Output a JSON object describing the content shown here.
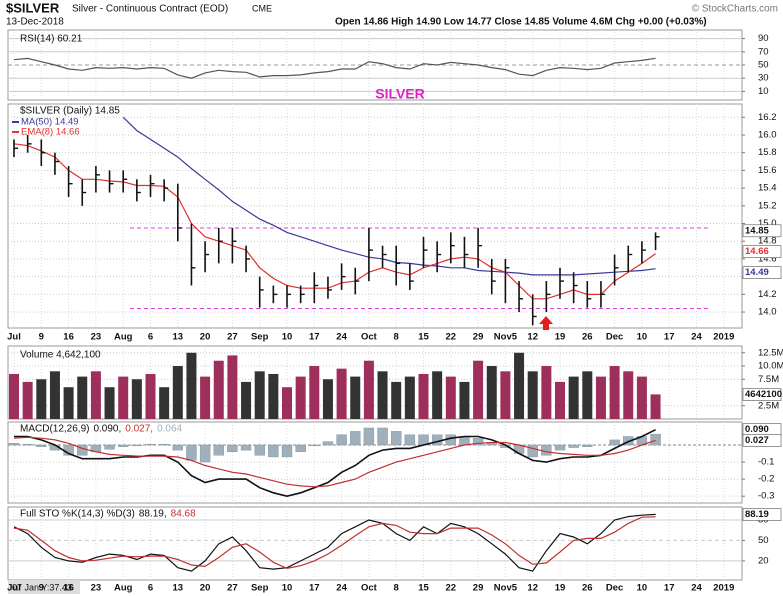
{
  "header": {
    "symbol": "$SILVER",
    "name": "Silver - Continuous Contract (EOD)",
    "exchange": "CME",
    "date": "13-Dec-2018",
    "quote": "Open 14.86 High 14.90 Low 14.77 Close 14.85 Volume 4.6M Chg +0.00 (+0.03%)",
    "credit": "© StockCharts.com",
    "footer": "07 Jan Y:37.43"
  },
  "x_ticks": [
    "Jul",
    "9",
    "16",
    "23",
    "Aug",
    "6",
    "13",
    "20",
    "27",
    "Sep",
    "10",
    "17",
    "24",
    "Oct",
    "8",
    "15",
    "22",
    "29",
    "Nov5",
    "12",
    "19",
    "26",
    "Dec",
    "10",
    "17",
    "24",
    "2019"
  ],
  "chart_data": [
    {
      "type": "line",
      "title": "RSI(14) 60.21",
      "annotation": "SILVER",
      "ylim": [
        0,
        100
      ],
      "yticks": [
        90,
        70,
        50,
        30,
        10
      ],
      "grid": true,
      "series": [
        {
          "color": "#555555",
          "values": [
            58,
            60,
            55,
            50,
            44,
            42,
            46,
            45,
            46,
            44,
            46,
            45,
            35,
            30,
            38,
            42,
            40,
            39,
            32,
            34,
            34,
            35,
            38,
            40,
            44,
            44,
            55,
            52,
            46,
            44,
            52,
            50,
            54,
            52,
            50,
            46,
            43,
            36,
            34,
            42,
            46,
            45,
            43,
            45,
            53,
            55,
            57,
            60.21
          ]
        }
      ]
    },
    {
      "type": "ohlc",
      "title": "$SILVER (Daily) 14.85",
      "color": "#111111",
      "ylim": [
        13.82,
        16.35
      ],
      "yticks": [
        {
          "value": 14,
          "label": "14.0"
        },
        {
          "value": 14.2,
          "label": "14.2"
        },
        {
          "value": 14.4,
          "label": "14.4"
        },
        {
          "value": 14.6,
          "label": "14.6"
        },
        {
          "value": 14.8,
          "label": "14.8"
        },
        {
          "value": 15,
          "label": "15.0"
        },
        {
          "value": 15.2,
          "label": "15.2"
        },
        {
          "value": 15.4,
          "label": "15.4"
        },
        {
          "value": 15.6,
          "label": "15.6"
        },
        {
          "value": 15.8,
          "label": "15.8"
        },
        {
          "value": 16,
          "label": "16.0"
        },
        {
          "value": 16.2,
          "label": "16.2"
        }
      ],
      "high": [
        15.95,
        16.0,
        15.95,
        15.8,
        15.65,
        15.5,
        15.65,
        15.6,
        15.6,
        15.5,
        15.55,
        15.5,
        15.45,
        15.0,
        14.8,
        14.95,
        14.95,
        14.75,
        14.4,
        14.3,
        14.3,
        14.3,
        14.45,
        14.4,
        14.55,
        14.5,
        14.95,
        14.75,
        14.75,
        14.55,
        14.85,
        14.8,
        14.9,
        14.85,
        14.95,
        14.6,
        14.6,
        14.35,
        14.2,
        14.35,
        14.5,
        14.45,
        14.35,
        14.35,
        14.65,
        14.75,
        14.8,
        14.9
      ],
      "low": [
        15.75,
        15.8,
        15.65,
        15.55,
        15.3,
        15.2,
        15.35,
        15.35,
        15.35,
        15.25,
        15.3,
        15.25,
        14.8,
        14.3,
        14.45,
        14.55,
        14.55,
        14.45,
        14.05,
        14.1,
        14.05,
        14.1,
        14.1,
        14.15,
        14.25,
        14.2,
        14.35,
        14.5,
        14.3,
        14.25,
        14.5,
        14.45,
        14.55,
        14.5,
        14.5,
        14.2,
        14.1,
        14.0,
        13.85,
        14.0,
        14.15,
        14.1,
        14.05,
        14.05,
        14.3,
        14.45,
        14.55,
        14.7
      ],
      "close": [
        15.85,
        15.9,
        15.8,
        15.7,
        15.45,
        15.35,
        15.55,
        15.45,
        15.5,
        15.35,
        15.45,
        15.4,
        14.95,
        14.5,
        14.65,
        14.8,
        14.8,
        14.6,
        14.25,
        14.2,
        14.2,
        14.2,
        14.3,
        14.25,
        14.4,
        14.35,
        14.7,
        14.65,
        14.55,
        14.35,
        14.7,
        14.65,
        14.75,
        14.65,
        14.75,
        14.35,
        14.5,
        14.15,
        13.95,
        14.2,
        14.35,
        14.3,
        14.15,
        14.2,
        14.5,
        14.65,
        14.7,
        14.85
      ],
      "last_label": "14.85",
      "hlines": [
        14.95,
        14.04
      ],
      "hline_color": "#e040e0",
      "series": [
        {
          "name": "MA(50) 14.49",
          "color": "#3a3a9a",
          "last_label": "14.49",
          "values": [
            null,
            null,
            null,
            null,
            null,
            null,
            null,
            null,
            16.2,
            16.05,
            15.95,
            15.85,
            15.75,
            15.62,
            15.5,
            15.38,
            15.25,
            15.15,
            15.05,
            14.98,
            14.9,
            14.85,
            14.8,
            14.75,
            14.7,
            14.66,
            14.62,
            14.6,
            14.56,
            14.55,
            14.53,
            14.52,
            14.5,
            14.5,
            14.47,
            14.46,
            14.45,
            14.44,
            14.42,
            14.42,
            14.42,
            14.42,
            14.43,
            14.44,
            14.45,
            14.46,
            14.47,
            14.49
          ]
        },
        {
          "name": "EMA(8) 14.66",
          "color": "#e03030",
          "last_label": "14.66",
          "values": [
            15.9,
            15.88,
            15.82,
            15.75,
            15.6,
            15.5,
            15.5,
            15.48,
            15.47,
            15.43,
            15.43,
            15.42,
            15.3,
            15.0,
            14.85,
            14.8,
            14.75,
            14.7,
            14.5,
            14.38,
            14.3,
            14.27,
            14.27,
            14.27,
            14.33,
            14.35,
            14.45,
            14.5,
            14.45,
            14.42,
            14.5,
            14.55,
            14.6,
            14.62,
            14.6,
            14.5,
            14.45,
            14.3,
            14.15,
            14.15,
            14.2,
            14.25,
            14.2,
            14.2,
            14.35,
            14.45,
            14.55,
            14.66
          ]
        }
      ]
    },
    {
      "type": "bar",
      "title": "Volume 4,642,100",
      "up_color": "#9e2f5c",
      "down_color": "#333333",
      "ylim": [
        0,
        13.4
      ],
      "yticks": [
        {
          "value": 12.5,
          "label": "12.5M"
        },
        {
          "value": 10,
          "label": "10.0M"
        },
        {
          "value": 7.5,
          "label": "7.5M"
        },
        {
          "value": 2.5,
          "label": "2.5M"
        }
      ],
      "values": [
        8.5,
        7,
        7.5,
        9,
        6,
        8,
        9,
        6,
        8,
        7.5,
        8.5,
        6,
        10,
        12.5,
        8,
        11,
        12,
        7,
        9,
        8.5,
        6,
        8,
        10,
        7.5,
        9.5,
        8,
        11,
        9,
        7,
        8,
        8.5,
        9,
        8,
        7,
        11,
        10,
        9,
        12.5,
        9,
        10,
        7,
        8,
        9,
        8,
        10,
        9,
        8,
        4.6421
      ],
      "last_label": "4642100"
    },
    {
      "type": "macd",
      "title": "MACD(12,26,9)",
      "ylim": [
        -0.34,
        0.135
      ],
      "yticks": [
        -0.1,
        -0.2,
        -0.3
      ],
      "zero_line": 0,
      "series": [
        {
          "name": "0.090,",
          "color": "#111111",
          "last_label": "0.090",
          "values": [
            0.05,
            0.05,
            0.03,
            0.0,
            -0.05,
            -0.08,
            -0.08,
            -0.08,
            -0.07,
            -0.07,
            -0.06,
            -0.06,
            -0.1,
            -0.18,
            -0.22,
            -0.2,
            -0.2,
            -0.2,
            -0.25,
            -0.28,
            -0.3,
            -0.28,
            -0.25,
            -0.22,
            -0.16,
            -0.12,
            -0.06,
            -0.03,
            -0.02,
            -0.02,
            0.0,
            0.02,
            0.04,
            0.05,
            0.05,
            0.03,
            0.0,
            -0.05,
            -0.09,
            -0.1,
            -0.08,
            -0.07,
            -0.07,
            -0.06,
            -0.02,
            0.02,
            0.05,
            0.09
          ]
        },
        {
          "name": "0.027,",
          "color": "#c03030",
          "last_label": "0.027",
          "values": [
            0.04,
            0.045,
            0.04,
            0.03,
            0.01,
            -0.02,
            -0.04,
            -0.055,
            -0.06,
            -0.065,
            -0.065,
            -0.065,
            -0.07,
            -0.09,
            -0.12,
            -0.14,
            -0.16,
            -0.17,
            -0.19,
            -0.21,
            -0.23,
            -0.24,
            -0.245,
            -0.24,
            -0.22,
            -0.2,
            -0.16,
            -0.13,
            -0.1,
            -0.08,
            -0.06,
            -0.04,
            -0.02,
            0.0,
            0.01,
            0.015,
            0.015,
            0.0,
            -0.02,
            -0.04,
            -0.05,
            -0.055,
            -0.06,
            -0.06,
            -0.05,
            -0.03,
            0.0,
            0.027
          ]
        },
        {
          "name": "0.064",
          "color": "#9fb0bc",
          "bars": true,
          "values": [
            0.01,
            0.005,
            -0.01,
            -0.03,
            -0.06,
            -0.06,
            -0.04,
            -0.025,
            -0.01,
            -0.005,
            0.005,
            0.005,
            -0.03,
            -0.09,
            -0.1,
            -0.06,
            -0.04,
            -0.03,
            -0.06,
            -0.07,
            -0.07,
            -0.04,
            -0.005,
            0.02,
            0.06,
            0.08,
            0.1,
            0.1,
            0.08,
            0.06,
            0.06,
            0.06,
            0.06,
            0.05,
            0.04,
            0.015,
            -0.015,
            -0.05,
            -0.07,
            -0.06,
            -0.03,
            -0.015,
            -0.01,
            0.0,
            0.03,
            0.05,
            0.05,
            0.064
          ]
        }
      ]
    },
    {
      "type": "line",
      "title": "Full STO %K(14,3) %D(3)",
      "ylim": [
        -8,
        99
      ],
      "yticks": [
        80,
        50,
        20
      ],
      "grid": true,
      "series": [
        {
          "name": "88.19,",
          "color": "#111111",
          "last_label": "88.19",
          "values": [
            70,
            60,
            40,
            25,
            20,
            18,
            25,
            30,
            28,
            22,
            30,
            28,
            10,
            5,
            20,
            45,
            55,
            35,
            10,
            8,
            10,
            20,
            30,
            40,
            60,
            70,
            80,
            75,
            60,
            50,
            70,
            60,
            75,
            70,
            60,
            45,
            30,
            10,
            5,
            35,
            60,
            55,
            45,
            60,
            80,
            85,
            87,
            88.19
          ]
        },
        {
          "name": "84.68",
          "color": "#c03030",
          "values": [
            68,
            65,
            50,
            35,
            25,
            20,
            21,
            24,
            27,
            26,
            27,
            27,
            22,
            14,
            12,
            25,
            40,
            45,
            33,
            18,
            9,
            13,
            20,
            30,
            43,
            57,
            70,
            75,
            72,
            62,
            60,
            60,
            68,
            68,
            68,
            58,
            45,
            28,
            15,
            17,
            33,
            50,
            53,
            53,
            62,
            75,
            84,
            84.68
          ]
        }
      ]
    }
  ]
}
